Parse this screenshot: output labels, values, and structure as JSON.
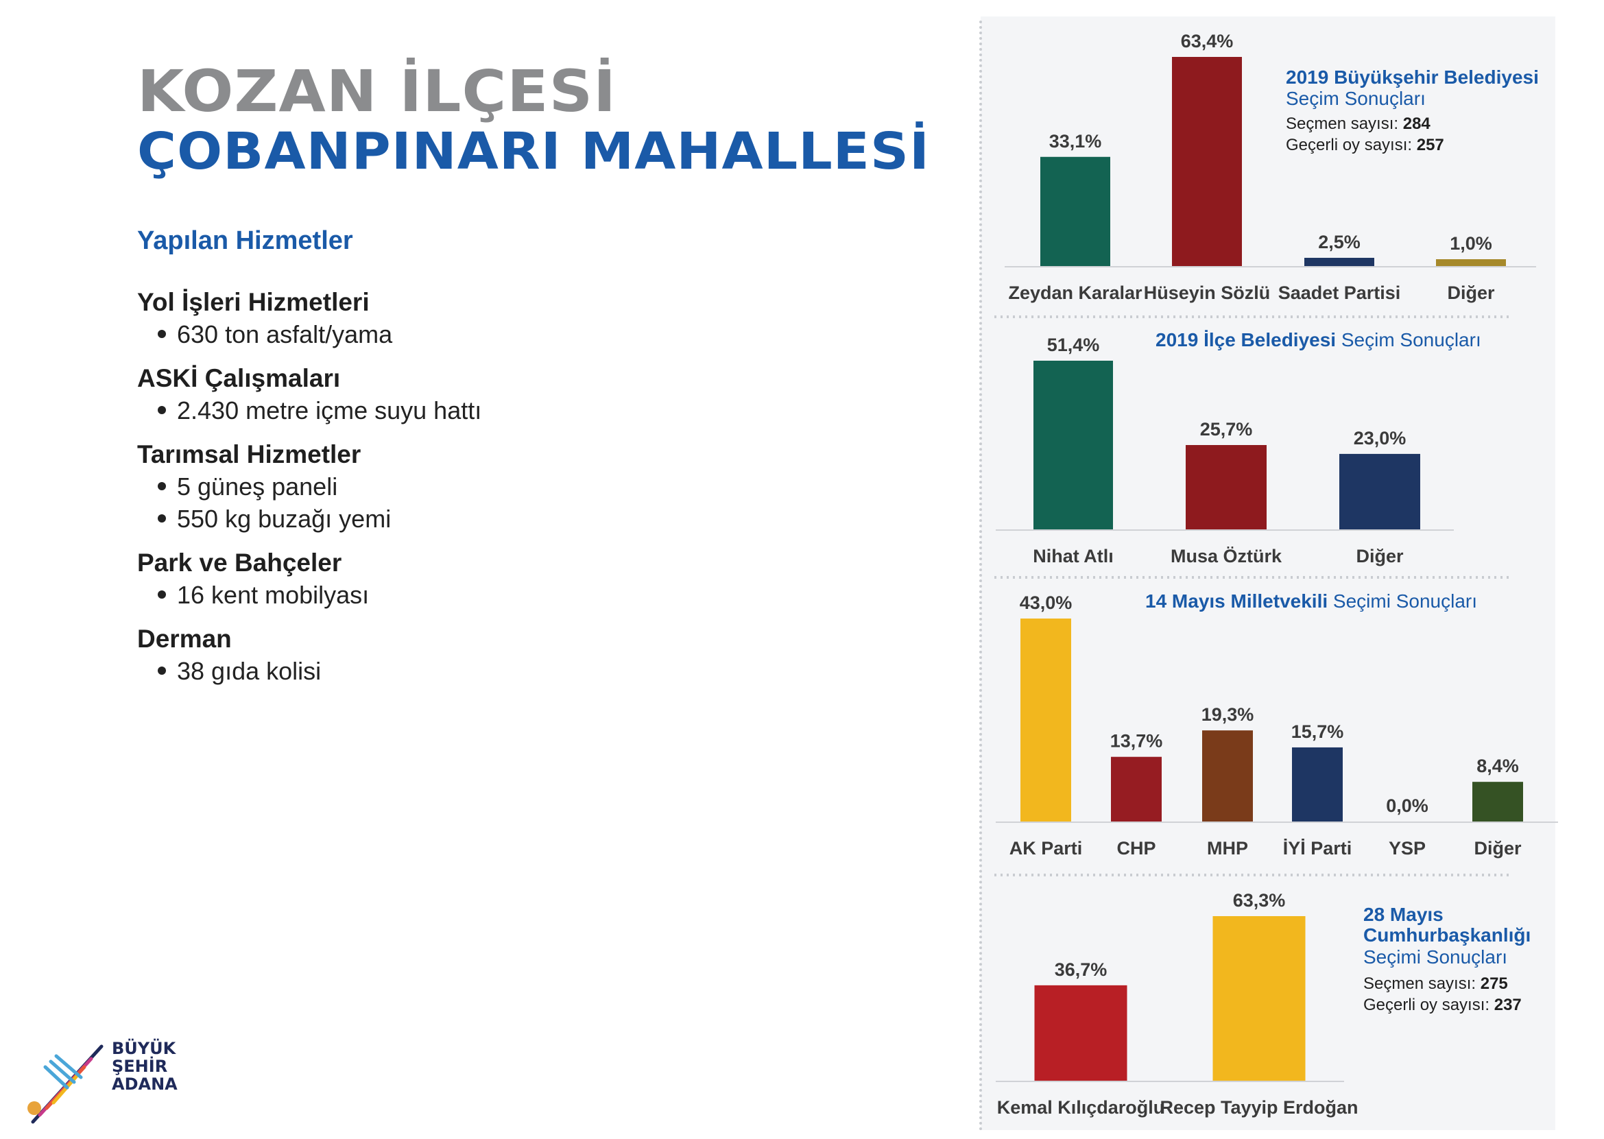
{
  "header": {
    "title_line1": "KOZAN İLÇESİ",
    "title_line2": "ÇOBANPINARI MAHALLESİ"
  },
  "services": {
    "heading": "Yapılan Hizmetler",
    "groups": [
      {
        "title": "Yol İşleri Hizmetleri",
        "items": [
          "630 ton asfalt/yama"
        ]
      },
      {
        "title": "ASKİ Çalışmaları",
        "items": [
          "2.430 metre içme suyu hattı"
        ]
      },
      {
        "title": "Tarımsal Hizmetler",
        "items": [
          "5 güneş paneli",
          "550 kg buzağı yemi"
        ]
      },
      {
        "title": "Park ve Bahçeler",
        "items": [
          "16 kent mobilyası"
        ]
      },
      {
        "title": "Derman",
        "items": [
          "38 gıda kolisi"
        ]
      }
    ]
  },
  "logo": {
    "line1": "BÜYÜK",
    "line2": "ŞEHİR",
    "line3": "ADANA"
  },
  "chart_data": [
    {
      "type": "bar",
      "title_bold": "2019 Büyükşehir Belediyesi",
      "title_normal": "Seçim Sonuçları",
      "meta": [
        {
          "label": "Seçmen sayısı: ",
          "value": "284"
        },
        {
          "label": "Geçerli oy sayısı: ",
          "value": "257"
        }
      ],
      "categories": [
        "Zeydan Karalar",
        "Hüseyin Sözlü",
        "Saadet Partisi",
        "Diğer"
      ],
      "values": [
        33.1,
        63.4,
        2.5,
        1.0
      ],
      "value_labels": [
        "33,1%",
        "63,4%",
        "2,5%",
        "1,0%"
      ],
      "colors": [
        "#136352",
        "#8e1a1e",
        "#1e3663",
        "#a6892b"
      ],
      "ylim": [
        0,
        63.4
      ]
    },
    {
      "type": "bar",
      "title_bold": "2019 İlçe Belediyesi",
      "title_normal": "Seçim Sonuçları",
      "categories": [
        "Nihat Atlı",
        "Musa Öztürk",
        "Diğer"
      ],
      "values": [
        51.4,
        25.7,
        23.0
      ],
      "value_labels": [
        "51,4%",
        "25,7%",
        "23,0%"
      ],
      "colors": [
        "#136352",
        "#8e1a1e",
        "#1e3663"
      ],
      "ylim": [
        0,
        51.4
      ]
    },
    {
      "type": "bar",
      "title_bold": "14 Mayıs Milletvekili",
      "title_normal": "Seçimi Sonuçları",
      "categories": [
        "AK Parti",
        "CHP",
        "MHP",
        "İYİ Parti",
        "YSP",
        "Diğer"
      ],
      "values": [
        43.0,
        13.7,
        19.3,
        15.7,
        0.0,
        8.4
      ],
      "value_labels": [
        "43,0%",
        "13,7%",
        "19,3%",
        "15,7%",
        "0,0%",
        "8,4%"
      ],
      "colors": [
        "#f2b71e",
        "#961c22",
        "#7a3b1a",
        "#1e3663",
        "#999999",
        "#355224"
      ],
      "ylim": [
        0,
        43.0
      ]
    },
    {
      "type": "bar",
      "title_bold": "28 Mayıs Cumhurbaşkanlığı",
      "title_normal": "Seçimi Sonuçları",
      "meta": [
        {
          "label": "Seçmen sayısı: ",
          "value": "275"
        },
        {
          "label": "Geçerli oy sayısı: ",
          "value": "237"
        }
      ],
      "categories": [
        "Kemal Kılıçdaroğlu",
        "Recep Tayyip Erdoğan"
      ],
      "values": [
        36.7,
        63.3
      ],
      "value_labels": [
        "36,7%",
        "63,3%"
      ],
      "colors": [
        "#b81f25",
        "#f2b71e"
      ],
      "ylim": [
        0,
        63.3
      ]
    }
  ]
}
